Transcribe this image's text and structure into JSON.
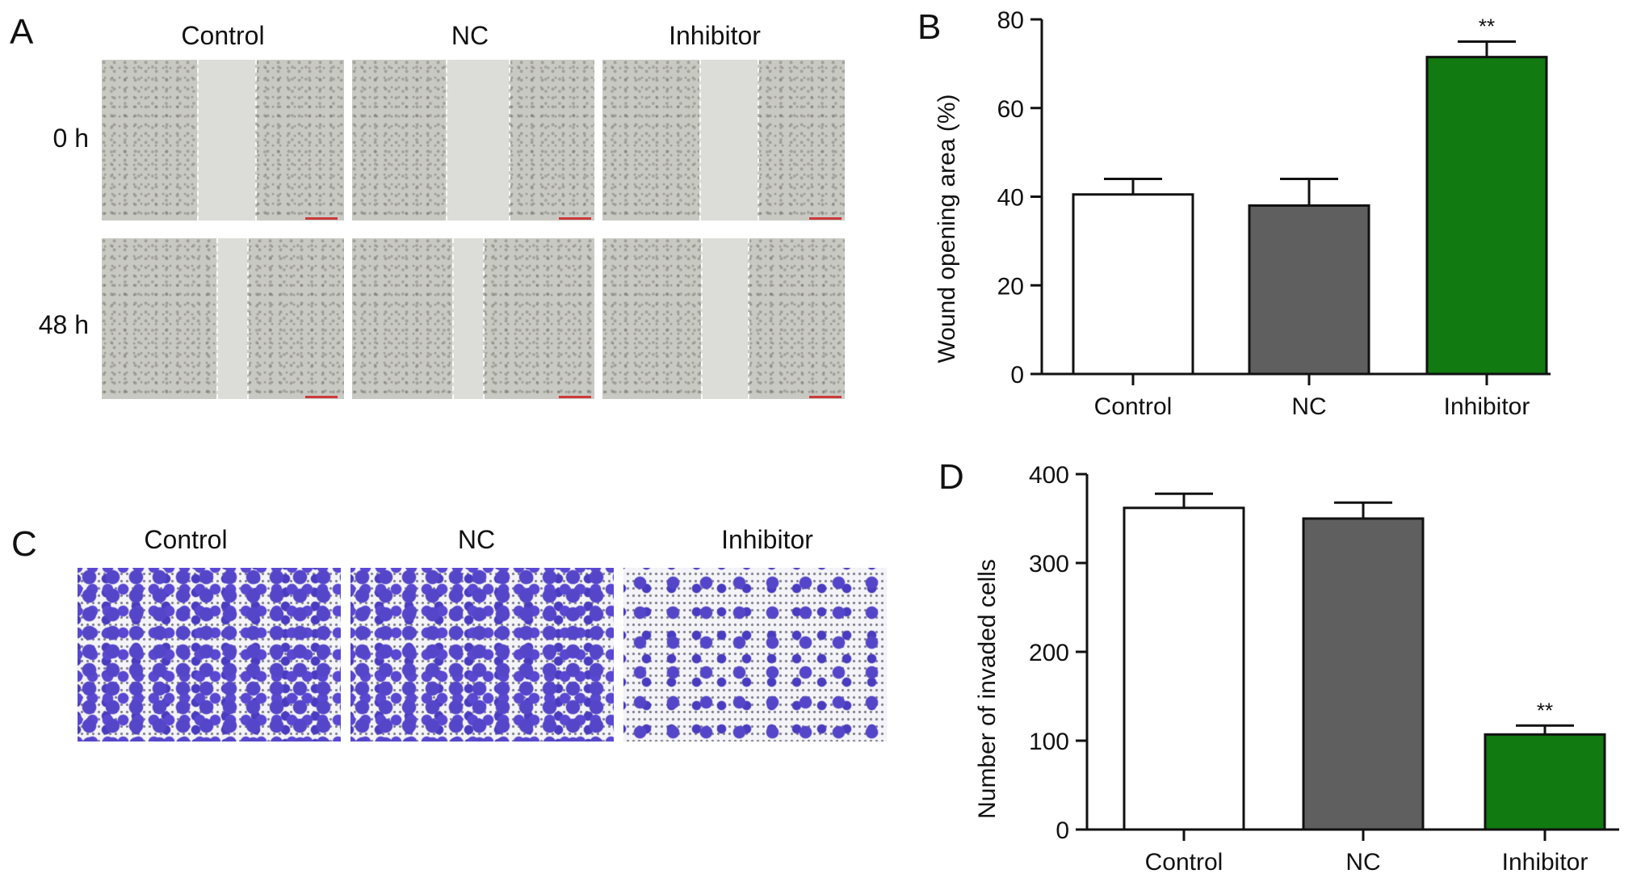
{
  "panels": {
    "a": {
      "letter": "A",
      "columns": [
        "Control",
        "NC",
        "Inhibitor"
      ],
      "rows": [
        "0 h",
        "48 h"
      ]
    },
    "c": {
      "letter": "C",
      "columns": [
        "Control",
        "NC",
        "Inhibitor"
      ]
    }
  },
  "colors": {
    "control": "#ffffff",
    "nc": "#5f5f5f",
    "inhibitor": "#117a11",
    "axis": "#111111"
  },
  "chart_data": [
    {
      "panel_letter": "B",
      "type": "bar",
      "categories": [
        "Control",
        "NC",
        "Inhibitor"
      ],
      "values": [
        40.5,
        38,
        71.5
      ],
      "errors": [
        3.5,
        6,
        3.5
      ],
      "significance": [
        "",
        "",
        "**"
      ],
      "bar_colors": [
        "#ffffff",
        "#5f5f5f",
        "#117a11"
      ],
      "ylabel": "Wound opening area (%)",
      "xlabel": "",
      "ylim": [
        0,
        80
      ],
      "yticks": [
        0,
        20,
        40,
        60,
        80
      ],
      "grid": false,
      "legend": "none"
    },
    {
      "panel_letter": "D",
      "type": "bar",
      "categories": [
        "Control",
        "NC",
        "Inhibitor"
      ],
      "values": [
        362,
        350,
        107
      ],
      "errors": [
        16,
        18,
        10
      ],
      "significance": [
        "",
        "",
        "**"
      ],
      "bar_colors": [
        "#ffffff",
        "#5f5f5f",
        "#117a11"
      ],
      "ylabel": "Number of invaded cells",
      "xlabel": "",
      "ylim": [
        0,
        400
      ],
      "yticks": [
        0,
        100,
        200,
        300,
        400
      ],
      "grid": false,
      "legend": "none"
    }
  ]
}
